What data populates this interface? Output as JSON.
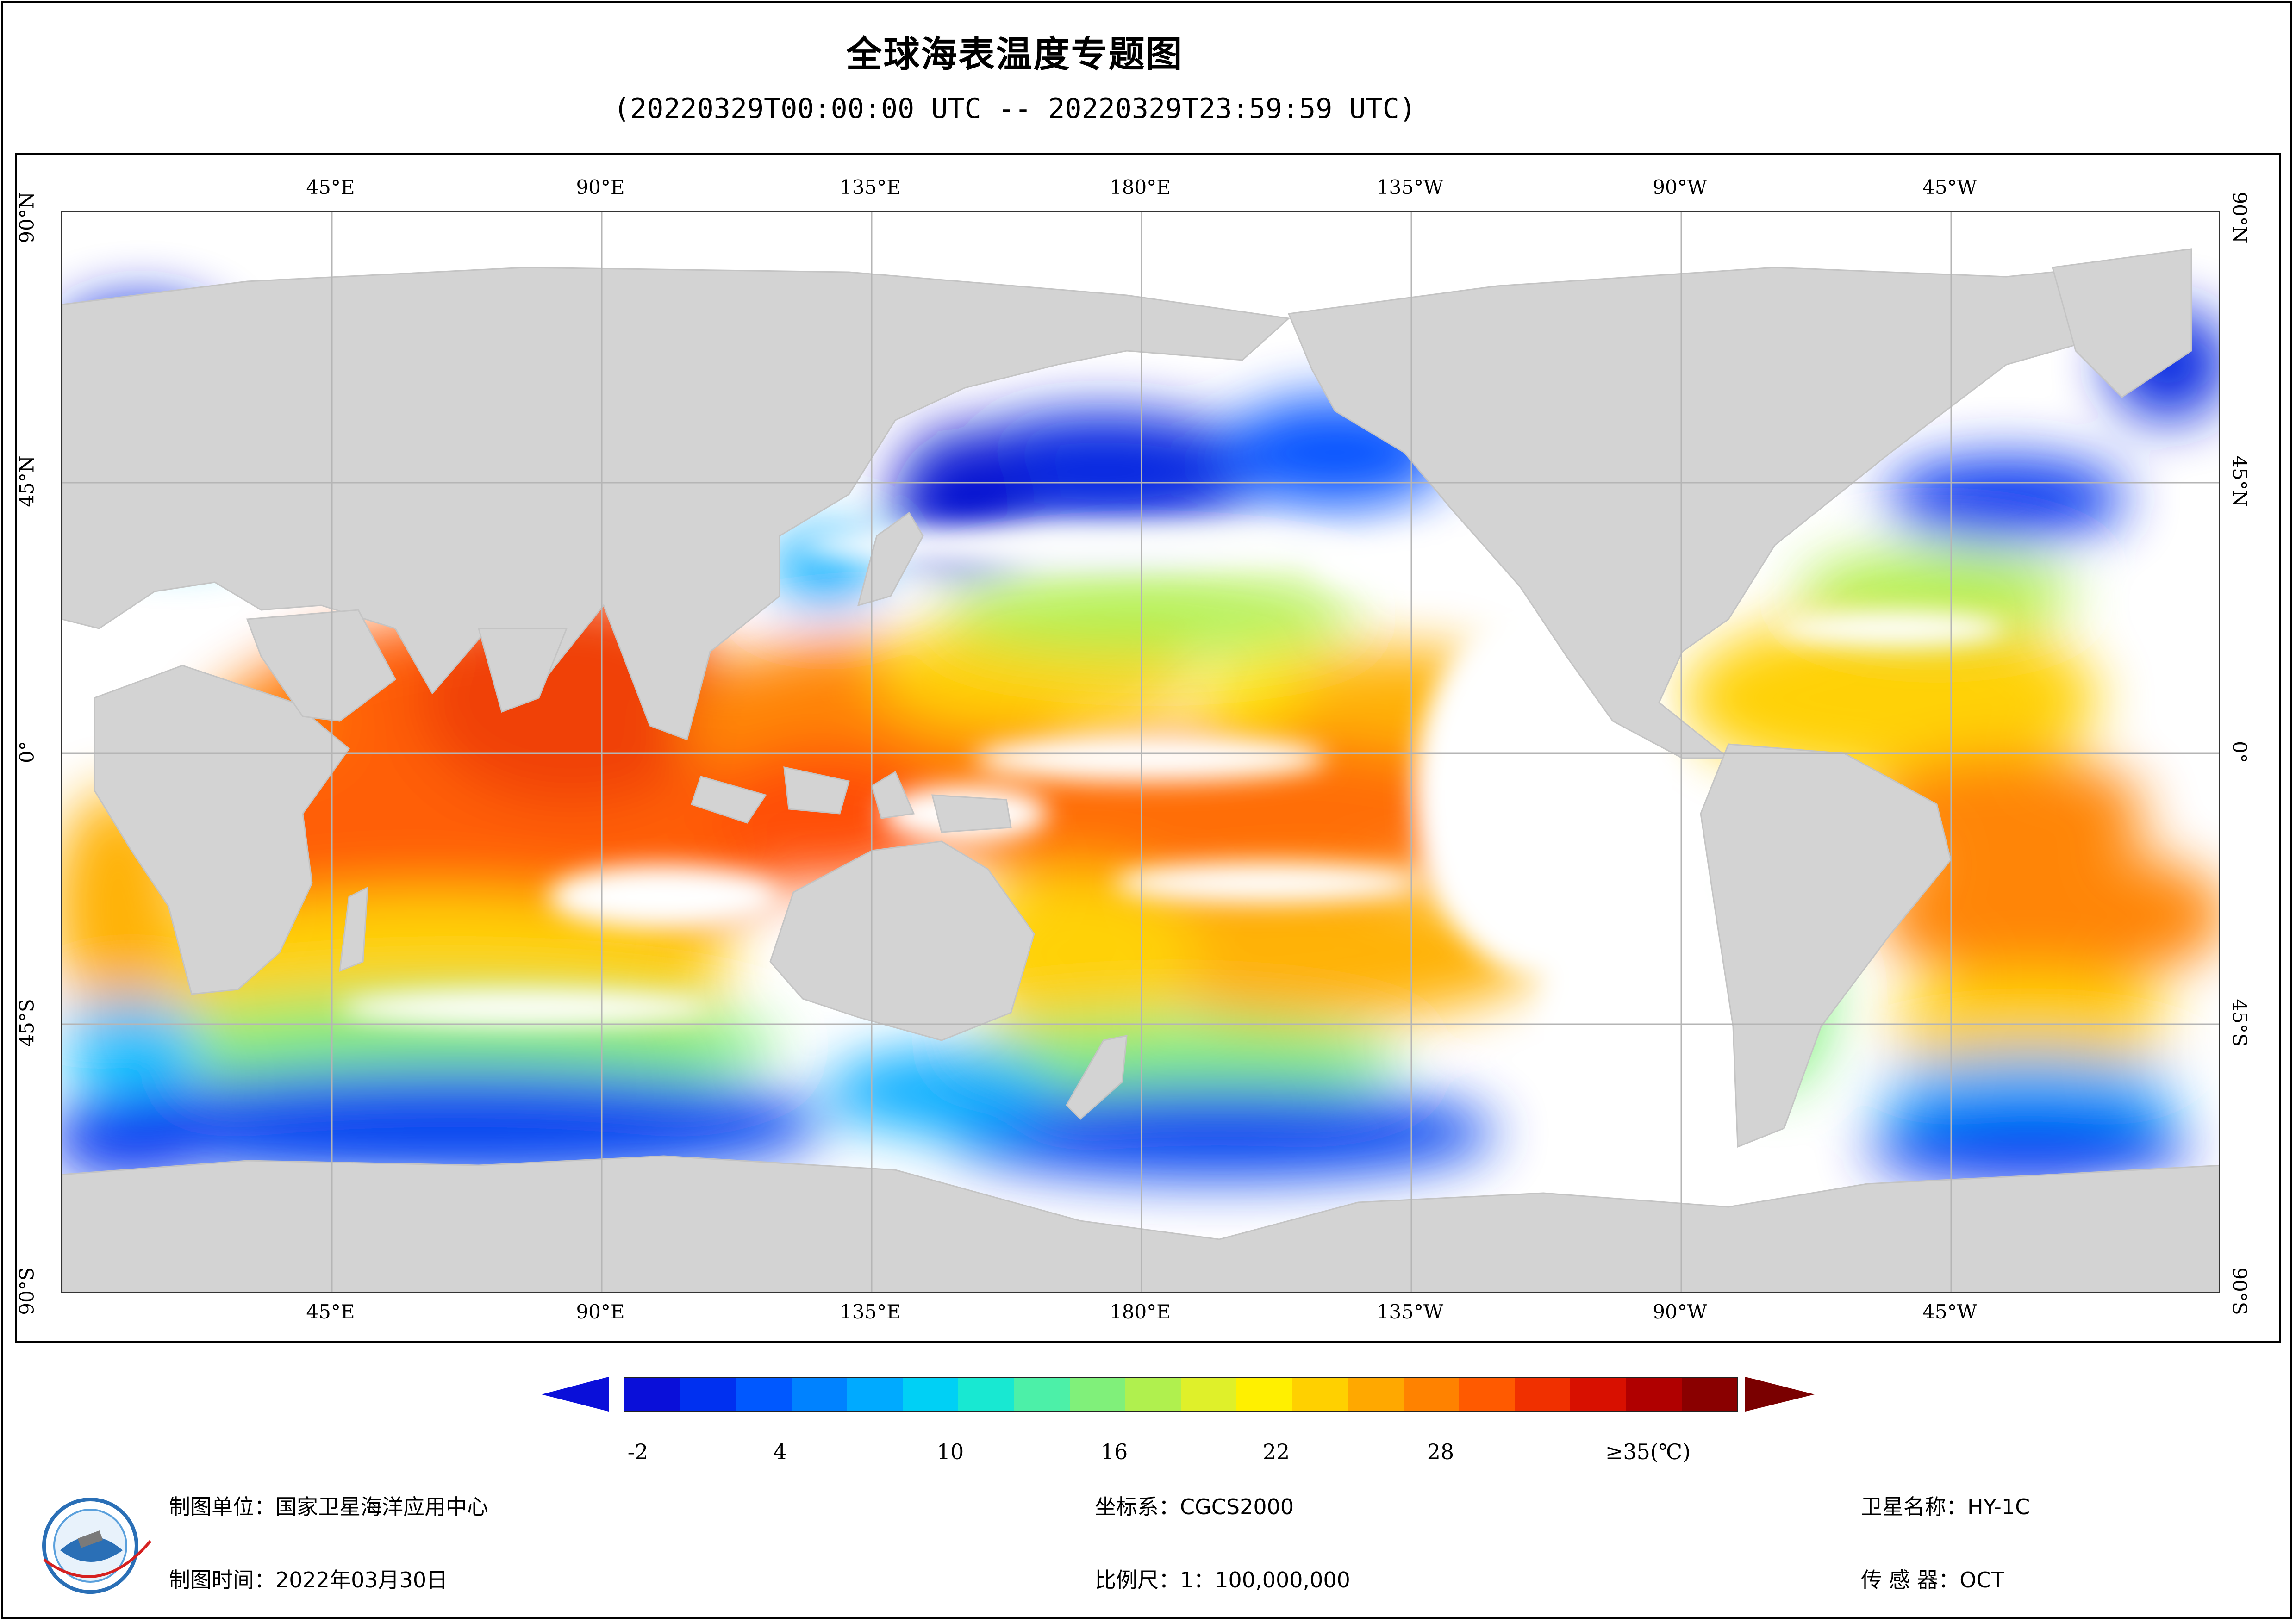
{
  "title": "全球海表温度专题图",
  "subtitle": "(20220329T00:00:00 UTC -- 20220329T23:59:59 UTC)",
  "map": {
    "lon_labels": [
      "45°E",
      "90°E",
      "135°E",
      "180°E",
      "135°W",
      "90°W",
      "45°W"
    ],
    "lat_labels": [
      "90°N",
      "45°N",
      "0°",
      "45°S",
      "90°S"
    ],
    "land_color": "#d3d3d3",
    "nodata_color": "#ffffff",
    "grid_color": "#b5b5b5"
  },
  "legend": {
    "tick_labels": [
      "-2",
      "4",
      "10",
      "16",
      "22",
      "28",
      "≥35(℃)"
    ],
    "ramp_colors": [
      "#0a0fd9",
      "#0030f0",
      "#0058ff",
      "#0082ff",
      "#00aaff",
      "#00d0f5",
      "#18e8d2",
      "#4cf0a8",
      "#80f07a",
      "#b0f04e",
      "#dff02a",
      "#fff000",
      "#ffd000",
      "#ffa800",
      "#ff8200",
      "#ff5a00",
      "#f03000",
      "#d81000",
      "#b00000",
      "#8a0000"
    ],
    "under_color": "#0a0fd9",
    "over_color": "#7a0000"
  },
  "info": {
    "producer": "制图单位：国家卫星海洋应用中心",
    "date": "制图时间：2022年03月30日",
    "crs": "坐标系：CGCS2000",
    "scale": "比例尺：1：100,000,000",
    "satellite": "卫星名称：HY-1C",
    "sensor": "传 感 器：OCT"
  }
}
